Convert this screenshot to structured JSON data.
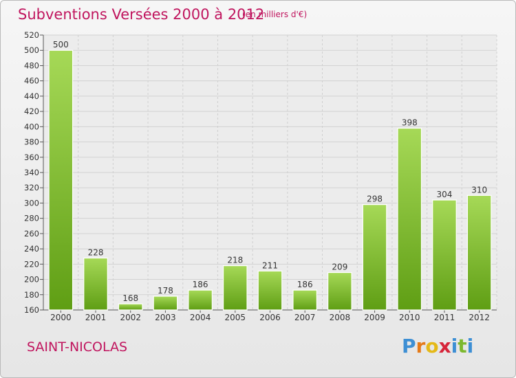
{
  "header": {
    "title": "Subventions Versées 2000 à 2012",
    "unit": "(en milliers d'€)"
  },
  "footer": {
    "commune": "SAINT-NICOLAS",
    "logo_letters": [
      "P",
      "r",
      "o",
      "x",
      "i",
      "t",
      "i"
    ],
    "logo_colors": [
      "#3d8fd4",
      "#e57a18",
      "#e5b918",
      "#d6253a",
      "#3d8fd4",
      "#7cb82f",
      "#3d8fd4"
    ]
  },
  "colors": {
    "title": "#c0155e",
    "bar_light": "#a6d957",
    "bar_dark": "#5f9e14"
  },
  "chart_data": {
    "type": "bar",
    "title": "Subventions Versées 2000 à 2012",
    "categories": [
      "2000",
      "2001",
      "2002",
      "2003",
      "2004",
      "2005",
      "2006",
      "2007",
      "2008",
      "2009",
      "2010",
      "2011",
      "2012"
    ],
    "values": [
      500,
      228,
      168,
      178,
      186,
      218,
      211,
      186,
      209,
      298,
      398,
      304,
      310
    ],
    "ylim": [
      160,
      520
    ],
    "yticks": [
      160,
      180,
      200,
      220,
      240,
      260,
      280,
      300,
      320,
      340,
      360,
      380,
      400,
      420,
      440,
      460,
      480,
      500,
      520
    ],
    "grid": true,
    "xlabel": "",
    "ylabel": ""
  }
}
